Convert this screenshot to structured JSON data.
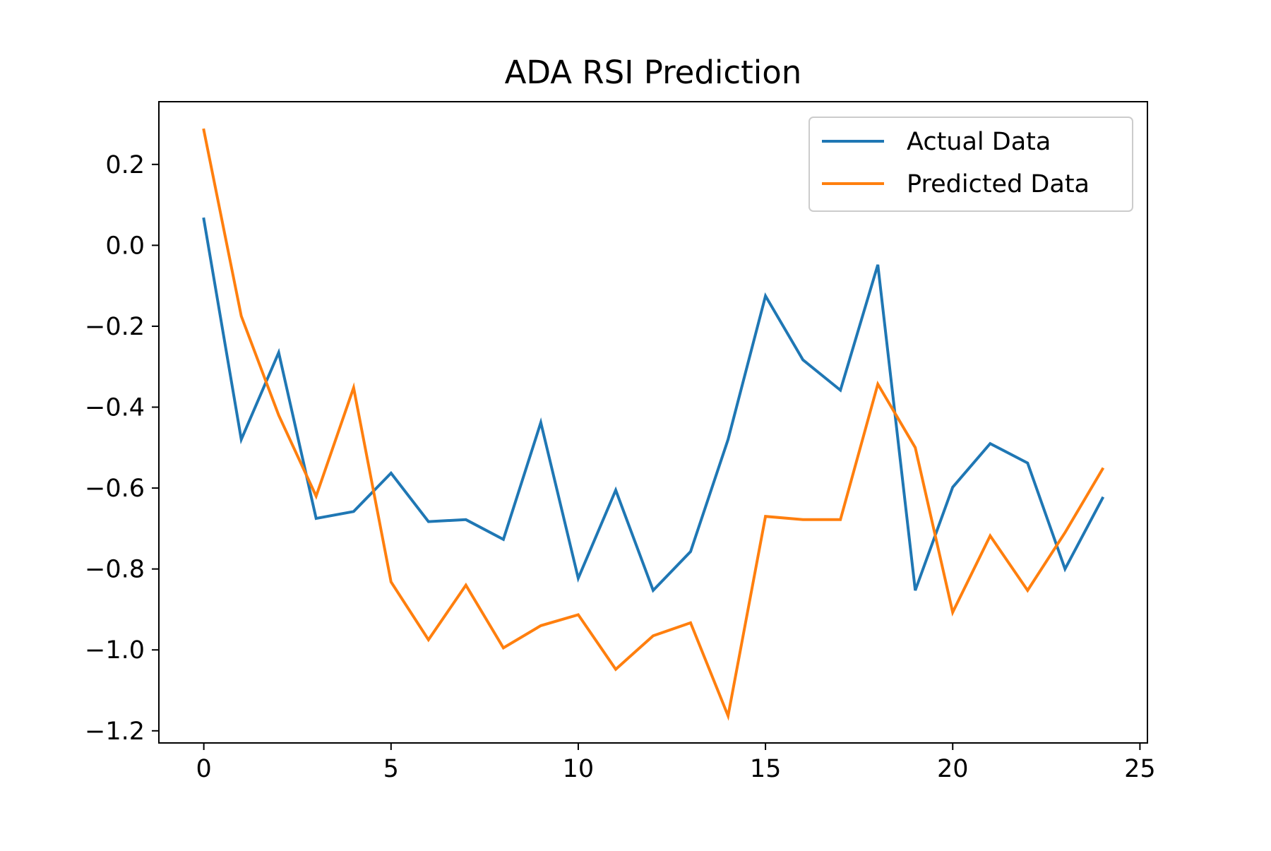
{
  "chart_data": {
    "type": "line",
    "title": "ADA RSI Prediction",
    "xlabel": "",
    "ylabel": "",
    "xlim": [
      -1.2,
      25.2
    ],
    "ylim": [
      -1.23,
      0.355
    ],
    "x_ticks": [
      0,
      5,
      10,
      15,
      20,
      25
    ],
    "y_ticks": [
      0.2,
      0.0,
      -0.2,
      -0.4,
      -0.6,
      -0.8,
      -1.0,
      -1.2
    ],
    "x_tick_labels": [
      "0",
      "5",
      "10",
      "15",
      "20",
      "25"
    ],
    "y_tick_labels": [
      "0.2",
      "0.0",
      "−0.2",
      "−0.4",
      "−0.6",
      "−0.8",
      "−1.0",
      "−1.2"
    ],
    "grid": false,
    "legend_position": "top-right",
    "x": [
      0,
      1,
      2,
      3,
      4,
      5,
      6,
      7,
      8,
      9,
      10,
      11,
      12,
      13,
      14,
      15,
      16,
      17,
      18,
      19,
      20,
      21,
      22,
      23,
      24
    ],
    "series": [
      {
        "name": "Actual Data",
        "color": "#1f77b4",
        "values": [
          0.065,
          -0.48,
          -0.265,
          -0.675,
          -0.658,
          -0.563,
          -0.683,
          -0.678,
          -0.727,
          -0.438,
          -0.823,
          -0.605,
          -0.853,
          -0.757,
          -0.48,
          -0.125,
          -0.283,
          -0.358,
          -0.048,
          -0.853,
          -0.598,
          -0.49,
          -0.538,
          -0.8,
          -0.625
        ]
      },
      {
        "name": "Predicted Data",
        "color": "#ff7f0e",
        "values": [
          0.285,
          -0.175,
          -0.42,
          -0.62,
          -0.352,
          -0.832,
          -0.975,
          -0.84,
          -0.995,
          -0.94,
          -0.913,
          -1.048,
          -0.965,
          -0.933,
          -1.163,
          -0.67,
          -0.678,
          -0.678,
          -0.343,
          -0.5,
          -0.907,
          -0.718,
          -0.853,
          -0.71,
          -0.553
        ]
      }
    ]
  }
}
